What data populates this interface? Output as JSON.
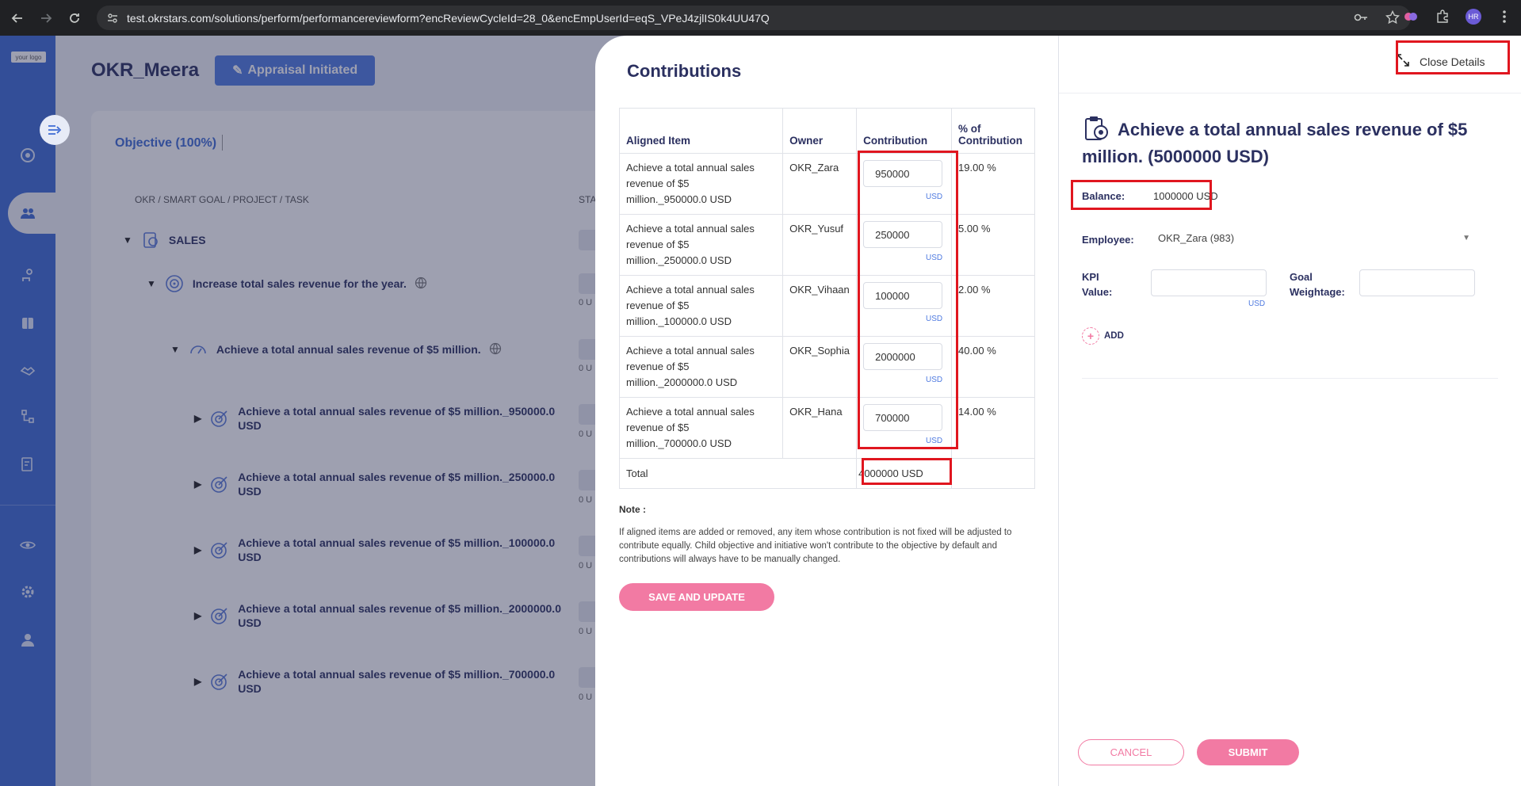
{
  "browser": {
    "url": "test.okrstars.com/solutions/perform/performancereviewform?encReviewCycleId=28_0&encEmpUserId=eqS_VPeJ4zjlIS0k4UU47Q",
    "avatar_initials": "HR"
  },
  "app": {
    "logo_text": "your logo",
    "title": "OKR_Meera",
    "status_label": "Appraisal Initiated",
    "objective_tab": "Objective (100%)",
    "column_heading": "OKR / SMART GOAL / PROJECT / TASK",
    "status_column": "STA",
    "tree": [
      {
        "label": "SALES"
      },
      {
        "label": "Increase total sales revenue for the year."
      },
      {
        "label": "Achieve a total annual sales revenue of $5 million."
      },
      {
        "label_line1": "Achieve a total annual sales revenue of $5 million._950000.0",
        "label_line2": "USD"
      },
      {
        "label_line1": "Achieve a total annual sales revenue of $5 million._250000.0",
        "label_line2": "USD"
      },
      {
        "label_line1": "Achieve a total annual sales revenue of $5 million._100000.0",
        "label_line2": "USD"
      },
      {
        "label_line1": "Achieve a total annual sales revenue of $5 million._2000000.0",
        "label_line2": "USD"
      },
      {
        "label_line1": "Achieve a total annual sales revenue of $5 million._700000.0",
        "label_line2": "USD"
      }
    ],
    "status_sub": "0 U"
  },
  "contributions": {
    "title": "Contributions",
    "headers": {
      "aligned_item": "Aligned Item",
      "owner": "Owner",
      "contribution": "Contribution",
      "percent_line1": "% of",
      "percent_line2": "Contribution"
    },
    "currency": "USD",
    "rows": [
      {
        "item_l1": "Achieve a total annual sales",
        "item_l2": "revenue of $5",
        "item_l3": "million._950000.0 USD",
        "owner": "OKR_Zara",
        "amount": "950000",
        "percent": "19.00 %"
      },
      {
        "item_l1": "Achieve a total annual sales",
        "item_l2": "revenue of $5",
        "item_l3": "million._250000.0 USD",
        "owner": "OKR_Yusuf",
        "amount": "250000",
        "percent": "5.00 %"
      },
      {
        "item_l1": "Achieve a total annual sales",
        "item_l2": "revenue of $5",
        "item_l3": "million._100000.0 USD",
        "owner": "OKR_Vihaan",
        "amount": "100000",
        "percent": "2.00 %"
      },
      {
        "item_l1": "Achieve a total annual sales",
        "item_l2": "revenue of $5",
        "item_l3": "million._2000000.0 USD",
        "owner": "OKR_Sophia",
        "amount": "2000000",
        "percent": "40.00 %"
      },
      {
        "item_l1": "Achieve a total annual sales",
        "item_l2": "revenue of $5",
        "item_l3": "million._700000.0 USD",
        "owner": "OKR_Hana",
        "amount": "700000",
        "percent": "14.00 %"
      }
    ],
    "total_label": "Total",
    "total_value": "4000000 USD",
    "note_label": "Note :",
    "note_text": "If aligned items are added or removed, any item whose contribution is not fixed will be adjusted to contribute equally. Child objective and initiative won't contribute to the objective by default and contributions will always have to be manually changed.",
    "save_label": "SAVE AND UPDATE"
  },
  "details": {
    "close_label": "Close Details",
    "goal_title": "Achieve a total annual sales revenue of $5 million. (5000000 USD)",
    "balance_label": "Balance:",
    "balance_value": "1000000 USD",
    "employee_label": "Employee:",
    "employee_value": "OKR_Zara (983)",
    "kpi_label_l1": "KPI",
    "kpi_label_l2": "Value:",
    "kpi_currency": "USD",
    "weightage_label_l1": "Goal",
    "weightage_label_l2": "Weightage:",
    "add_label": "ADD",
    "cancel_label": "CANCEL",
    "submit_label": "SUBMIT"
  },
  "colors": {
    "sidebar": "#3d6ad4",
    "accent_pink": "#f27aa3",
    "highlight_red": "#e0161f",
    "title_navy": "#2b3060"
  }
}
